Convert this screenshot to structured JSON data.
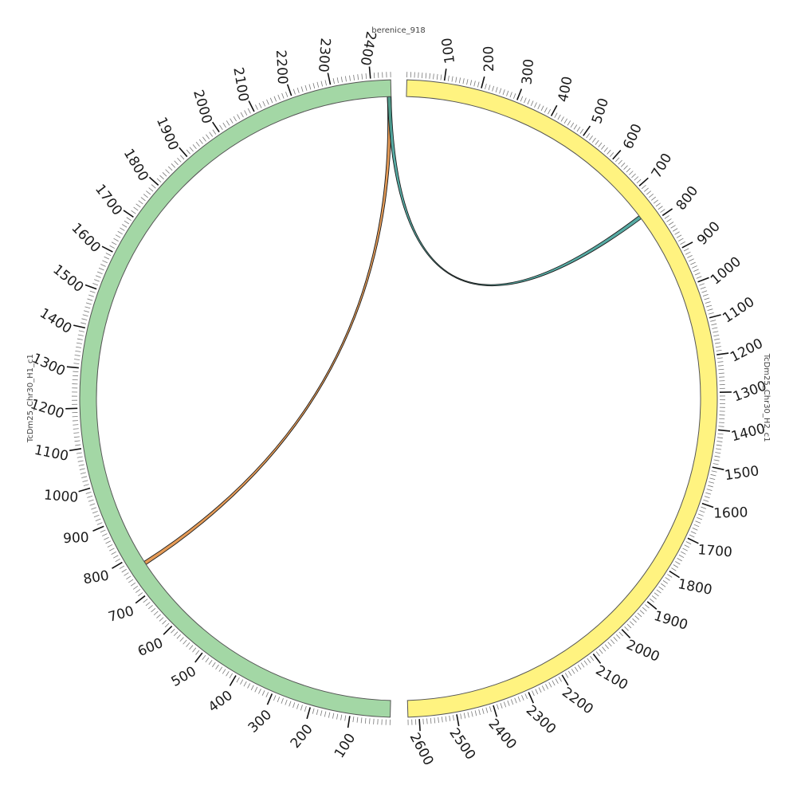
{
  "title": "berenice_918",
  "segments": [
    {
      "id": "H2",
      "name": "TcDm25_Chr30_H2_c1",
      "length": 2630,
      "color": "#fff380",
      "direction": "clockwise",
      "tick_labels": [
        "100",
        "200",
        "300",
        "400",
        "500",
        "600",
        "700",
        "800",
        "900",
        "1000",
        "1100",
        "1200",
        "1300",
        "1400",
        "1500",
        "1600",
        "1700",
        "1800",
        "1900",
        "2000",
        "2100",
        "2200",
        "2300",
        "2400",
        "2500",
        "2600"
      ]
    },
    {
      "id": "H1",
      "name": "TcDm25_Chr30_H1_c1",
      "length": 2450,
      "color": "#a3d7a5",
      "direction": "clockwise",
      "tick_labels": [
        "100",
        "200",
        "300",
        "400",
        "500",
        "600",
        "700",
        "800",
        "900",
        "1000",
        "1100",
        "1200",
        "1300",
        "1400",
        "1500",
        "1600",
        "1700",
        "1800",
        "1900",
        "2000",
        "2100",
        "2200",
        "2300",
        "2400"
      ]
    }
  ],
  "links": [
    {
      "from_segment": "H1",
      "from_pos": 2445,
      "to_segment": "H1",
      "to_pos": 768,
      "color": "#e08a3a"
    },
    {
      "from_segment": "H1",
      "from_pos": 2445,
      "to_segment": "H2",
      "to_pos": 768,
      "color": "#3a9c94"
    }
  ]
}
